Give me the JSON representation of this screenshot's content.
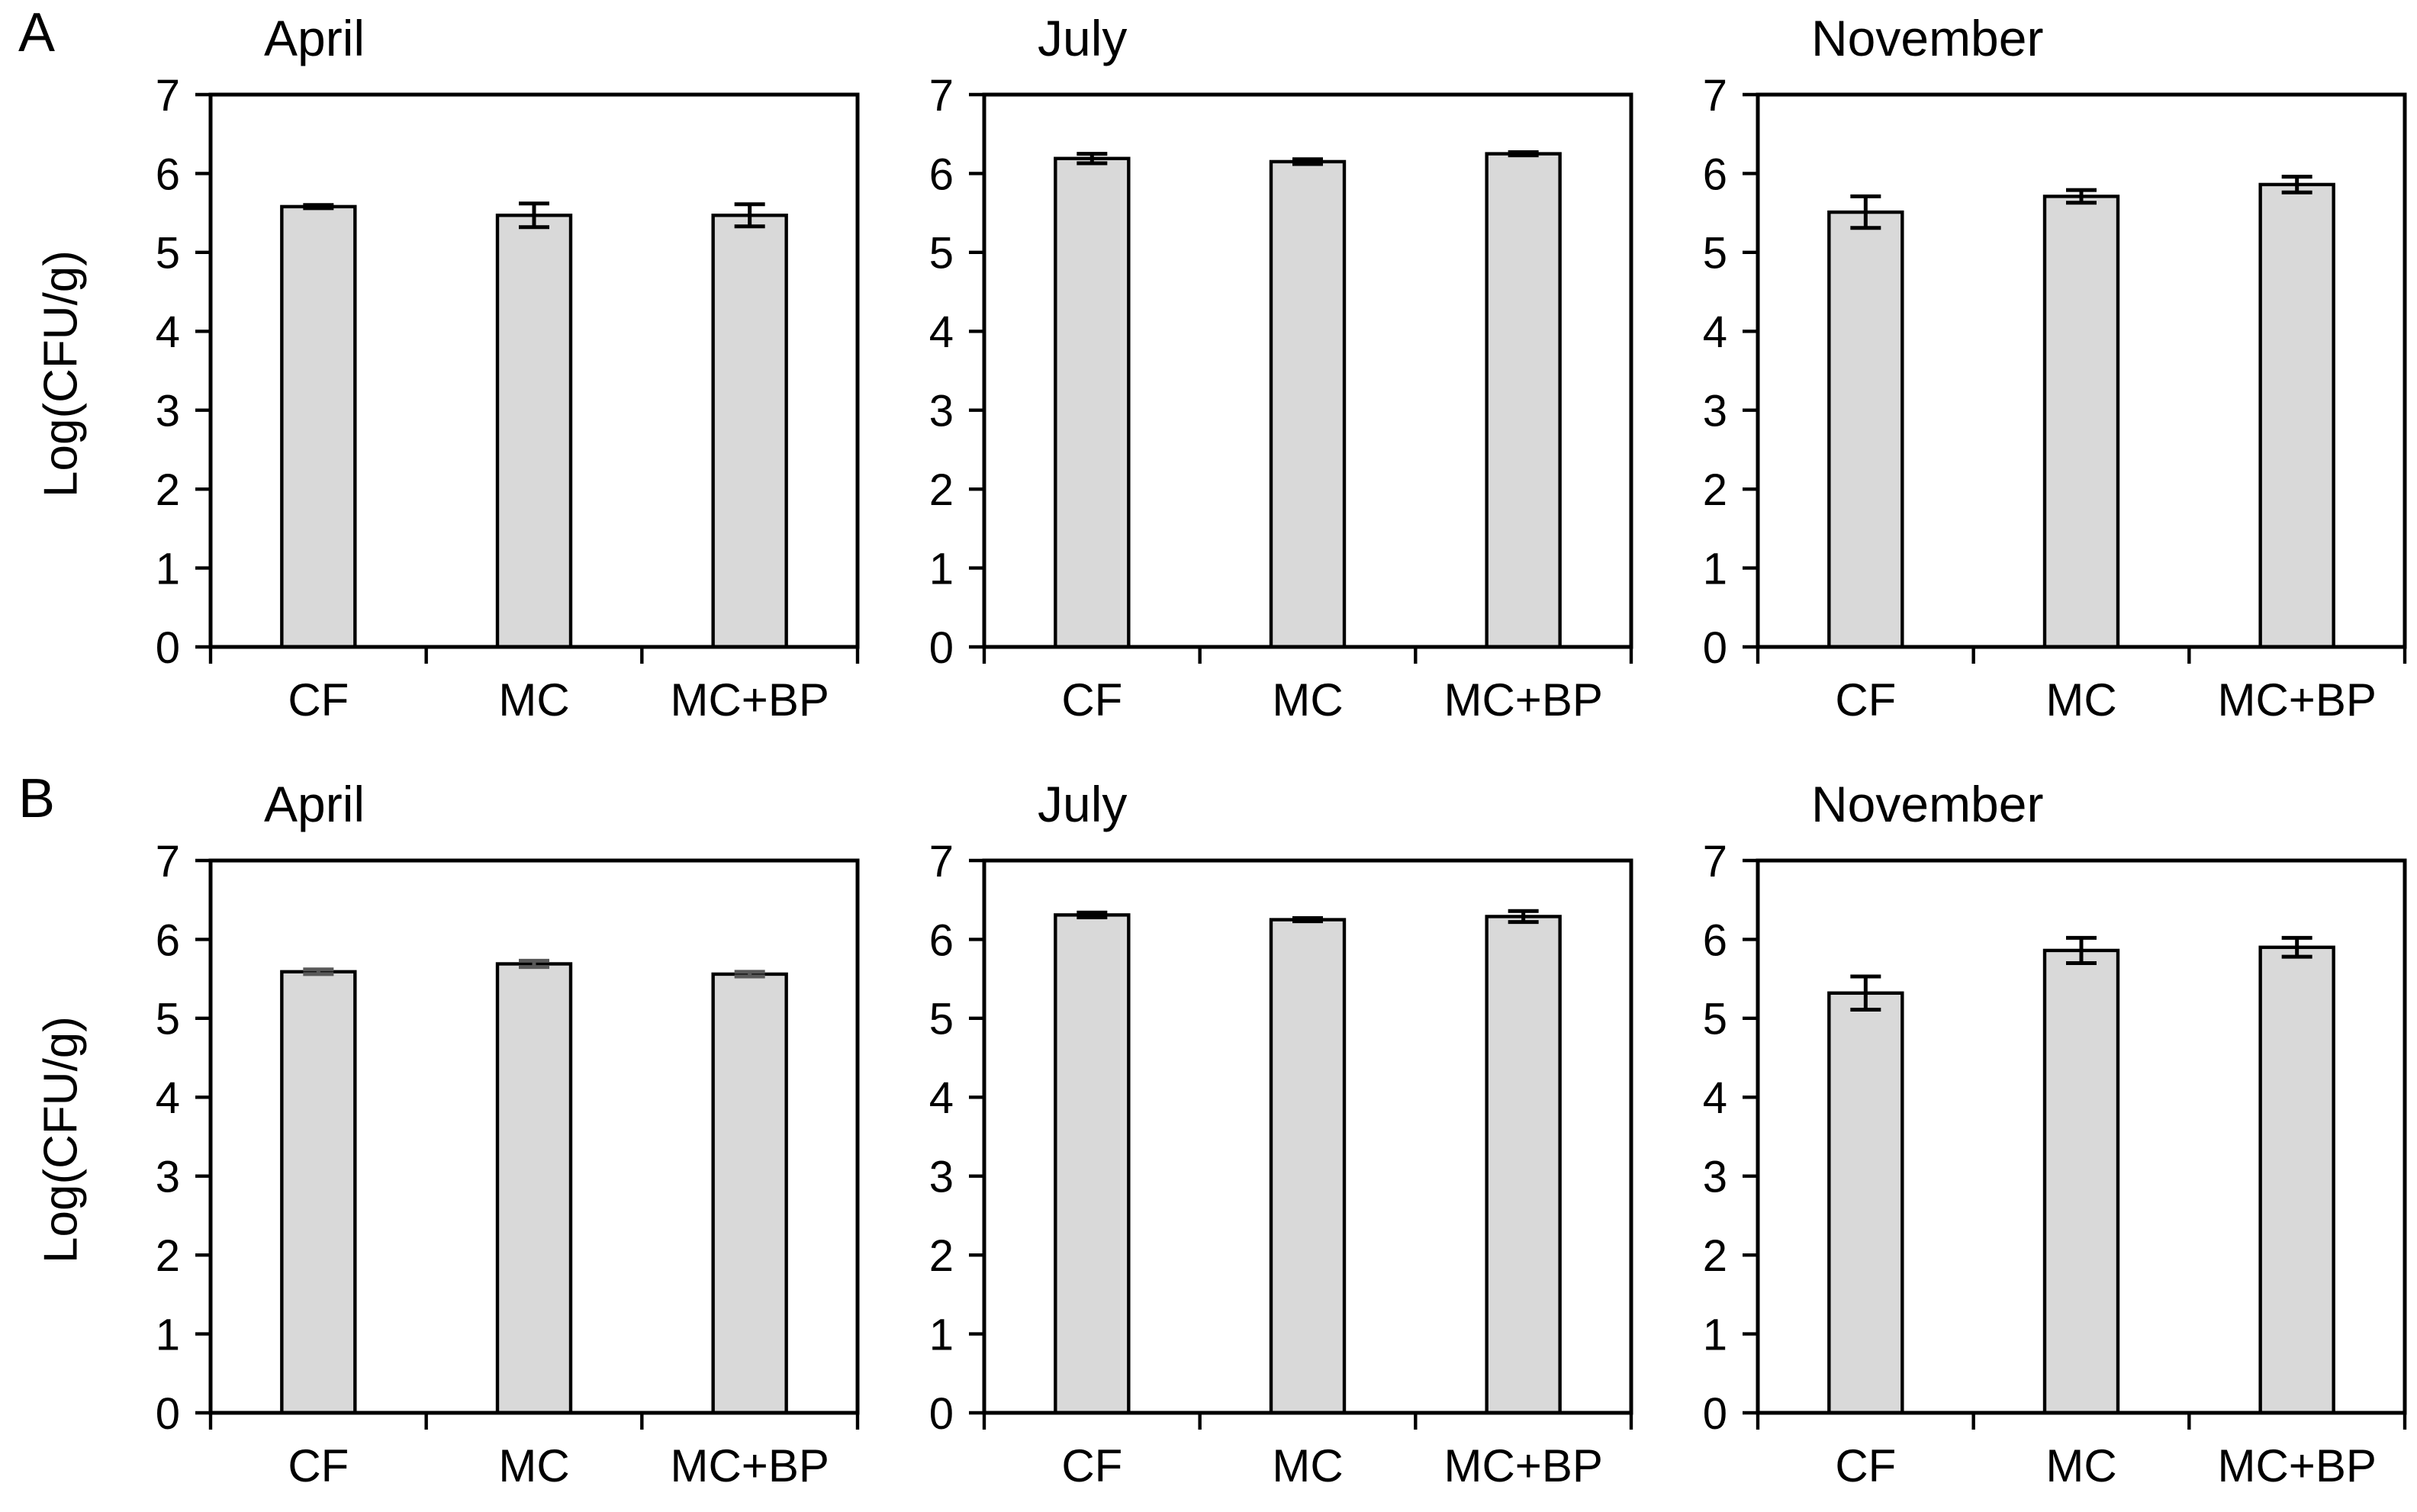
{
  "figure": {
    "background": "#ffffff",
    "bar_fill": "#d9d9d9",
    "bar_edge": "#000000",
    "axis_color": "#000000"
  },
  "panels": [
    {
      "label": "A",
      "ylabel": "Log(CFU/g)"
    },
    {
      "label": "B",
      "ylabel": "Log(CFU/g)"
    }
  ],
  "chart_data": [
    {
      "type": "bar",
      "panel": "A",
      "title": "April",
      "ylabel": "Log(CFU/g)",
      "categories": [
        "CF",
        "MC",
        "MC+BP"
      ],
      "values": [
        5.58,
        5.47,
        5.47
      ],
      "errors": [
        0.02,
        0.15,
        0.14
      ],
      "ylim": [
        0,
        7
      ],
      "yticks": [
        0,
        1,
        2,
        3,
        4,
        5,
        6,
        7
      ],
      "grid": false,
      "legend": false,
      "bar_color": "#d9d9d9",
      "bar_edge": "#000000",
      "error_color": "#000000"
    },
    {
      "type": "bar",
      "panel": "A",
      "title": "July",
      "ylabel": "Log(CFU/g)",
      "categories": [
        "CF",
        "MC",
        "MC+BP"
      ],
      "values": [
        6.19,
        6.15,
        6.25
      ],
      "errors": [
        0.06,
        0.03,
        0.02
      ],
      "ylim": [
        0,
        7
      ],
      "yticks": [
        0,
        1,
        2,
        3,
        4,
        5,
        6,
        7
      ],
      "grid": false,
      "legend": false,
      "bar_color": "#d9d9d9",
      "bar_edge": "#000000",
      "error_color": "#000000"
    },
    {
      "type": "bar",
      "panel": "A",
      "title": "November",
      "ylabel": "Log(CFU/g)",
      "categories": [
        "CF",
        "MC",
        "MC+BP"
      ],
      "values": [
        5.51,
        5.71,
        5.86
      ],
      "errors": [
        0.2,
        0.08,
        0.1
      ],
      "ylim": [
        0,
        7
      ],
      "yticks": [
        0,
        1,
        2,
        3,
        4,
        5,
        6,
        7
      ],
      "grid": false,
      "legend": false,
      "bar_color": "#d9d9d9",
      "bar_edge": "#000000",
      "error_color": "#000000"
    },
    {
      "type": "bar",
      "panel": "B",
      "title": "April",
      "ylabel": "Log(CFU/g)",
      "categories": [
        "CF",
        "MC",
        "MC+BP"
      ],
      "values": [
        5.59,
        5.69,
        5.56
      ],
      "errors": [
        0.03,
        0.04,
        0.03
      ],
      "ylim": [
        0,
        7
      ],
      "yticks": [
        0,
        1,
        2,
        3,
        4,
        5,
        6,
        7
      ],
      "grid": false,
      "legend": false,
      "bar_color": "#d9d9d9",
      "bar_edge": "#000000",
      "error_color": "#595959"
    },
    {
      "type": "bar",
      "panel": "B",
      "title": "July",
      "ylabel": "Log(CFU/g)",
      "categories": [
        "CF",
        "MC",
        "MC+BP"
      ],
      "values": [
        6.31,
        6.25,
        6.29
      ],
      "errors": [
        0.03,
        0.02,
        0.07
      ],
      "ylim": [
        0,
        7
      ],
      "yticks": [
        0,
        1,
        2,
        3,
        4,
        5,
        6,
        7
      ],
      "grid": false,
      "legend": false,
      "bar_color": "#d9d9d9",
      "bar_edge": "#000000",
      "error_color": "#000000"
    },
    {
      "type": "bar",
      "panel": "B",
      "title": "November",
      "ylabel": "Log(CFU/g)",
      "categories": [
        "CF",
        "MC",
        "MC+BP"
      ],
      "values": [
        5.32,
        5.86,
        5.9
      ],
      "errors": [
        0.21,
        0.16,
        0.12
      ],
      "ylim": [
        0,
        7
      ],
      "yticks": [
        0,
        1,
        2,
        3,
        4,
        5,
        6,
        7
      ],
      "grid": false,
      "legend": false,
      "bar_color": "#d9d9d9",
      "bar_edge": "#000000",
      "error_color": "#000000"
    }
  ]
}
